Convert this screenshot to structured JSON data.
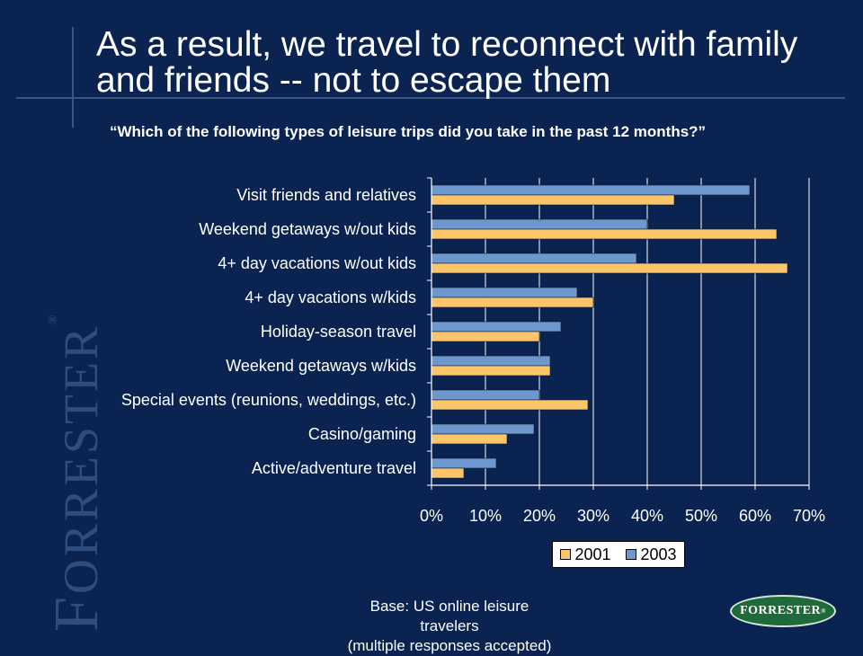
{
  "slide": {
    "title": "As a result, we travel to reconnect with family and friends -- not to escape them",
    "subtitle": "“Which of the following types of leisure trips did you take in the past 12 months?”",
    "base_line1": "Base: US online leisure",
    "base_line2": "travelers",
    "base_line3": "(multiple responses accepted)",
    "watermark": "FORRESTER",
    "logo_text": "FORRESTER"
  },
  "chart_data": {
    "type": "bar",
    "orientation": "horizontal",
    "categories": [
      "Visit friends and relatives",
      "Weekend getaways w/out kids",
      "4+ day vacations w/out kids",
      "4+ day vacations w/kids",
      "Holiday-season travel",
      "Weekend getaways w/kids",
      "Special events (reunions, weddings, etc.)",
      "Casino/gaming",
      "Active/adventure travel"
    ],
    "series": [
      {
        "name": "2003",
        "color": "#6d97cf",
        "values": [
          59,
          40,
          38,
          27,
          24,
          22,
          20,
          19,
          12
        ]
      },
      {
        "name": "2001",
        "color": "#fdc56a",
        "values": [
          45,
          64,
          66,
          30,
          20,
          22,
          29,
          14,
          6
        ]
      }
    ],
    "xlim": [
      0,
      70
    ],
    "xticks": [
      "0%",
      "10%",
      "20%",
      "30%",
      "40%",
      "50%",
      "60%",
      "70%"
    ],
    "grid": true,
    "legend_position": "bottom",
    "legend": [
      "2001",
      "2003"
    ]
  }
}
